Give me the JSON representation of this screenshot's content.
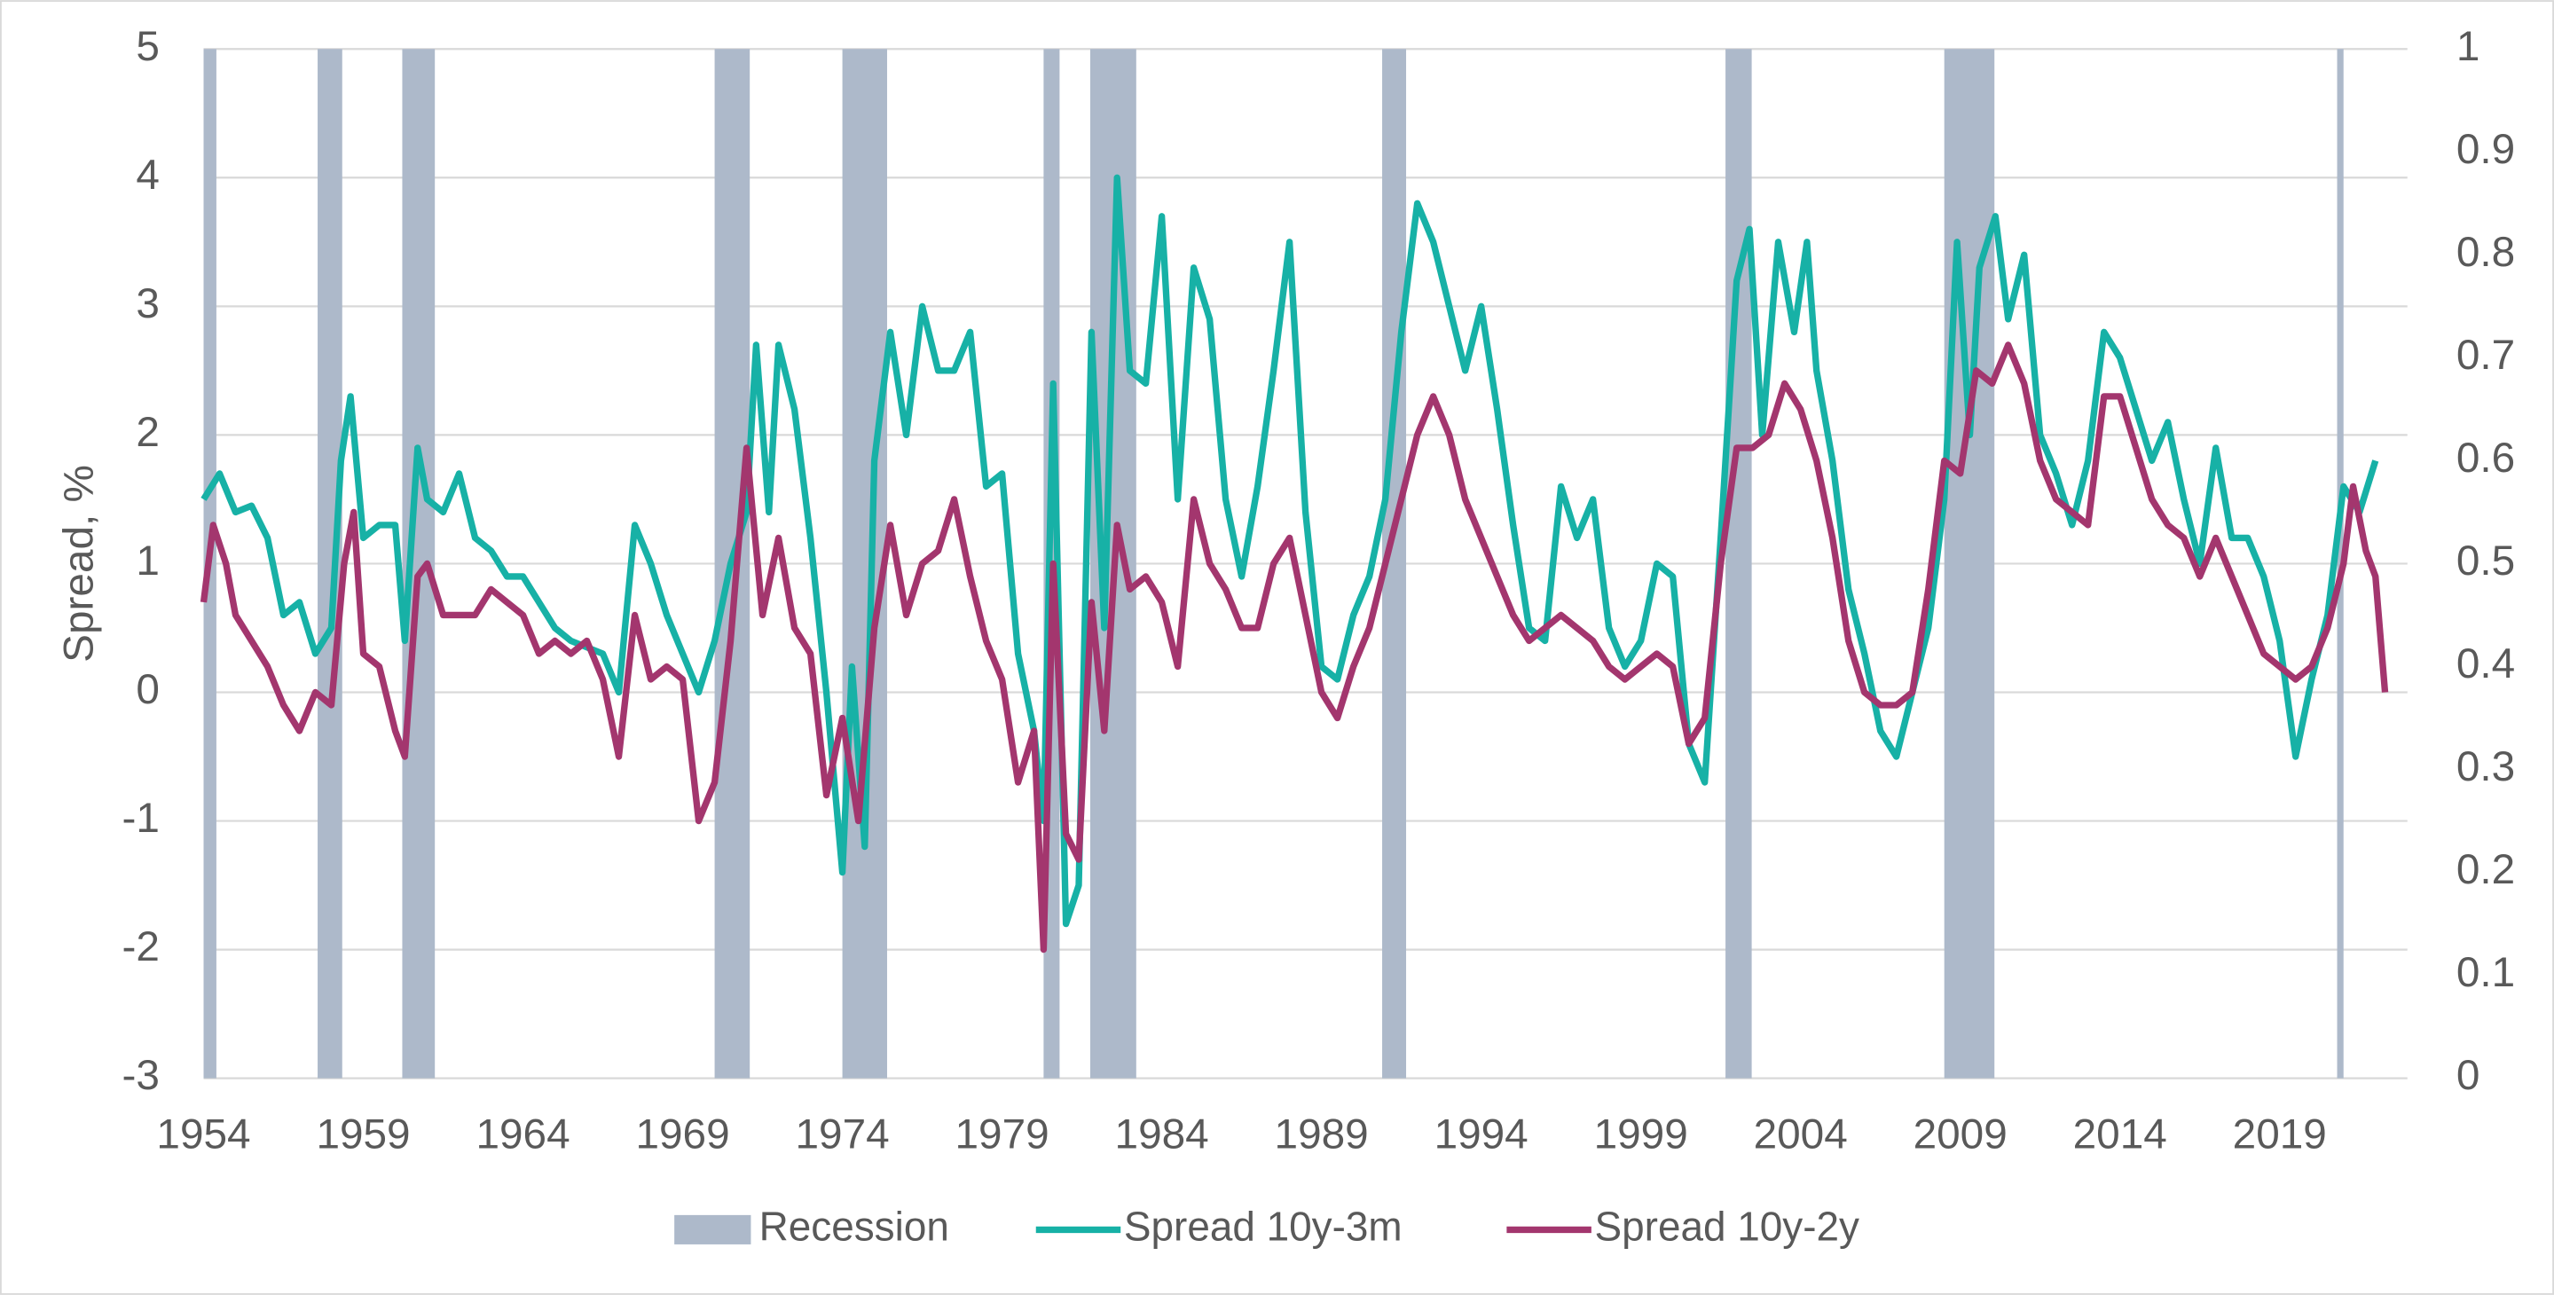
{
  "chart_data": {
    "type": "line",
    "ylabel": "Spread, %",
    "xlim": [
      1954,
      2023
    ],
    "xticks": [
      1954,
      1959,
      1964,
      1969,
      1974,
      1979,
      1984,
      1989,
      1994,
      1999,
      2004,
      2009,
      2014,
      2019
    ],
    "ylim": [
      -3,
      5
    ],
    "yticks": [
      -3,
      -2,
      -1,
      0,
      1,
      2,
      3,
      4,
      5
    ],
    "y2lim": [
      0,
      1
    ],
    "y2ticks": [
      0,
      0.1,
      0.2,
      0.3,
      0.4,
      0.5,
      0.6,
      0.7,
      0.8,
      0.9,
      1
    ],
    "grid": true,
    "legend": "bottom",
    "recession": {
      "name": "Recession",
      "color": "#adb9ca",
      "axis": "y2",
      "periods": [
        [
          1954,
          1954.4
        ],
        [
          1957.57,
          1958.34
        ],
        [
          1960.22,
          1961.24
        ],
        [
          1970.0,
          1971.1
        ],
        [
          1974.0,
          1975.4
        ],
        [
          1980.3,
          1980.8
        ],
        [
          1981.76,
          1983.2
        ],
        [
          1990.9,
          1991.65
        ],
        [
          2001.65,
          2002.47
        ],
        [
          2008.5,
          2010.07
        ],
        [
          2020.8,
          2021.0
        ]
      ],
      "values": [
        1,
        1,
        1,
        1,
        1,
        1,
        1,
        1,
        1,
        1,
        1
      ]
    },
    "series": [
      {
        "name": "Spread 10y-3m",
        "color": "#17b1a6",
        "x": [
          1954.0,
          1954.5,
          1955.0,
          1955.5,
          1956.0,
          1956.5,
          1957.0,
          1957.5,
          1958.0,
          1958.3,
          1958.6,
          1959.0,
          1959.5,
          1960.0,
          1960.3,
          1960.7,
          1961.0,
          1961.5,
          1962.0,
          1962.5,
          1963.0,
          1963.5,
          1964.0,
          1964.5,
          1965.0,
          1965.5,
          1966.0,
          1966.5,
          1967.0,
          1967.5,
          1968.0,
          1968.5,
          1969.0,
          1969.5,
          1970.0,
          1970.5,
          1971.0,
          1971.3,
          1971.7,
          1972.0,
          1972.5,
          1973.0,
          1973.5,
          1974.0,
          1974.3,
          1974.7,
          1975.0,
          1975.5,
          1976.0,
          1976.5,
          1977.0,
          1977.5,
          1978.0,
          1978.5,
          1979.0,
          1979.5,
          1980.0,
          1980.3,
          1980.6,
          1981.0,
          1981.4,
          1981.8,
          1982.2,
          1982.6,
          1983.0,
          1983.5,
          1984.0,
          1984.5,
          1985.0,
          1985.5,
          1986.0,
          1986.5,
          1987.0,
          1987.5,
          1988.0,
          1988.5,
          1989.0,
          1989.5,
          1990.0,
          1990.5,
          1991.0,
          1991.5,
          1992.0,
          1992.5,
          1993.0,
          1993.5,
          1994.0,
          1994.5,
          1995.0,
          1995.5,
          1996.0,
          1996.5,
          1997.0,
          1997.5,
          1998.0,
          1998.5,
          1999.0,
          1999.5,
          2000.0,
          2000.5,
          2001.0,
          2001.5,
          2002.0,
          2002.4,
          2002.8,
          2003.3,
          2003.8,
          2004.2,
          2004.5,
          2005.0,
          2005.5,
          2006.0,
          2006.5,
          2007.0,
          2007.5,
          2008.0,
          2008.5,
          2008.9,
          2009.3,
          2009.6,
          2010.1,
          2010.5,
          2011.0,
          2011.5,
          2012.0,
          2012.5,
          2013.0,
          2013.5,
          2014.0,
          2014.5,
          2015.0,
          2015.5,
          2016.0,
          2016.5,
          2017.0,
          2017.5,
          2018.0,
          2018.5,
          2019.0,
          2019.5,
          2020.0,
          2020.5,
          2021.0,
          2021.5,
          2022.0
        ],
        "values": [
          1.5,
          1.7,
          1.4,
          1.45,
          1.2,
          0.6,
          0.7,
          0.3,
          0.5,
          1.8,
          2.3,
          1.2,
          1.3,
          1.3,
          0.4,
          1.9,
          1.5,
          1.4,
          1.7,
          1.2,
          1.1,
          0.9,
          0.9,
          0.7,
          0.5,
          0.4,
          0.35,
          0.3,
          0.0,
          1.3,
          1.0,
          0.6,
          0.3,
          0.0,
          0.4,
          1.0,
          1.4,
          2.7,
          1.4,
          2.7,
          2.2,
          1.2,
          0.0,
          -1.4,
          0.2,
          -1.2,
          1.8,
          2.8,
          2.0,
          3.0,
          2.5,
          2.5,
          2.8,
          1.6,
          1.7,
          0.3,
          -0.3,
          -1.0,
          2.4,
          -1.8,
          -1.5,
          2.8,
          0.5,
          4.0,
          2.5,
          2.4,
          3.7,
          1.5,
          3.3,
          2.9,
          1.5,
          0.9,
          1.6,
          2.5,
          3.5,
          1.4,
          0.2,
          0.1,
          0.6,
          0.9,
          1.5,
          2.8,
          3.8,
          3.5,
          3.0,
          2.5,
          3.0,
          2.2,
          1.3,
          0.5,
          0.4,
          1.6,
          1.2,
          1.5,
          0.5,
          0.2,
          0.4,
          1.0,
          0.9,
          -0.4,
          -0.7,
          1.2,
          3.2,
          3.6,
          2.0,
          3.5,
          2.8,
          3.5,
          2.5,
          1.8,
          0.8,
          0.3,
          -0.3,
          -0.5,
          0.0,
          0.5,
          1.5,
          3.5,
          2.0,
          3.3,
          3.7,
          2.9,
          3.4,
          2.0,
          1.7,
          1.3,
          1.8,
          2.8,
          2.6,
          2.2,
          1.8,
          2.1,
          1.5,
          1.0,
          1.9,
          1.2,
          1.2,
          0.9,
          0.4,
          -0.5,
          0.1,
          0.6,
          1.6,
          1.4,
          1.8
        ]
      },
      {
        "name": "Spread 10y-2y",
        "color": "#a3366e",
        "x": [
          1954.0,
          1954.3,
          1954.7,
          1955.0,
          1955.5,
          1956.0,
          1956.5,
          1957.0,
          1957.5,
          1958.0,
          1958.4,
          1958.7,
          1959.0,
          1959.5,
          1960.0,
          1960.3,
          1960.7,
          1961.0,
          1961.5,
          1962.0,
          1962.5,
          1963.0,
          1963.5,
          1964.0,
          1964.5,
          1965.0,
          1965.5,
          1966.0,
          1966.5,
          1967.0,
          1967.5,
          1968.0,
          1968.5,
          1969.0,
          1969.5,
          1970.0,
          1970.5,
          1971.0,
          1971.5,
          1972.0,
          1972.5,
          1973.0,
          1973.5,
          1974.0,
          1974.5,
          1975.0,
          1975.5,
          1976.0,
          1976.5,
          1977.0,
          1977.5,
          1978.0,
          1978.5,
          1979.0,
          1979.5,
          1980.0,
          1980.3,
          1980.6,
          1981.0,
          1981.4,
          1981.8,
          1982.2,
          1982.6,
          1983.0,
          1983.5,
          1984.0,
          1984.5,
          1985.0,
          1985.5,
          1986.0,
          1986.5,
          1987.0,
          1987.5,
          1988.0,
          1988.5,
          1989.0,
          1989.5,
          1990.0,
          1990.5,
          1991.0,
          1991.5,
          1992.0,
          1992.5,
          1993.0,
          1993.5,
          1994.0,
          1994.5,
          1995.0,
          1995.5,
          1996.0,
          1996.5,
          1997.0,
          1997.5,
          1998.0,
          1998.5,
          1999.0,
          1999.5,
          2000.0,
          2000.5,
          2001.0,
          2001.5,
          2002.0,
          2002.5,
          2003.0,
          2003.5,
          2004.0,
          2004.5,
          2005.0,
          2005.5,
          2006.0,
          2006.5,
          2007.0,
          2007.5,
          2008.0,
          2008.5,
          2009.0,
          2009.5,
          2010.0,
          2010.5,
          2011.0,
          2011.5,
          2012.0,
          2012.5,
          2013.0,
          2013.5,
          2014.0,
          2014.5,
          2015.0,
          2015.5,
          2016.0,
          2016.5,
          2017.0,
          2017.5,
          2018.0,
          2018.5,
          2019.0,
          2019.5,
          2020.0,
          2020.5,
          2021.0,
          2021.3,
          2021.7,
          2022.0,
          2022.3
        ],
        "values": [
          0.7,
          1.3,
          1.0,
          0.6,
          0.4,
          0.2,
          -0.1,
          -0.3,
          0.0,
          -0.1,
          1.0,
          1.4,
          0.3,
          0.2,
          -0.3,
          -0.5,
          0.9,
          1.0,
          0.6,
          0.6,
          0.6,
          0.8,
          0.7,
          0.6,
          0.3,
          0.4,
          0.3,
          0.4,
          0.1,
          -0.5,
          0.6,
          0.1,
          0.2,
          0.1,
          -1.0,
          -0.7,
          0.4,
          1.9,
          0.6,
          1.2,
          0.5,
          0.3,
          -0.8,
          -0.2,
          -1.0,
          0.5,
          1.3,
          0.6,
          1.0,
          1.1,
          1.5,
          0.9,
          0.4,
          0.1,
          -0.7,
          -0.3,
          -2.0,
          1.0,
          -1.1,
          -1.3,
          0.7,
          -0.3,
          1.3,
          0.8,
          0.9,
          0.7,
          0.2,
          1.5,
          1.0,
          0.8,
          0.5,
          0.5,
          1.0,
          1.2,
          0.6,
          0.0,
          -0.2,
          0.2,
          0.5,
          1.0,
          1.5,
          2.0,
          2.3,
          2.0,
          1.5,
          1.2,
          0.9,
          0.6,
          0.4,
          0.5,
          0.6,
          0.5,
          0.4,
          0.2,
          0.1,
          0.2,
          0.3,
          0.2,
          -0.4,
          -0.2,
          1.0,
          1.9,
          1.9,
          2.0,
          2.4,
          2.2,
          1.8,
          1.2,
          0.4,
          0.0,
          -0.1,
          -0.1,
          0.0,
          0.8,
          1.8,
          1.7,
          2.5,
          2.4,
          2.7,
          2.4,
          1.8,
          1.5,
          1.4,
          1.3,
          2.3,
          2.3,
          1.9,
          1.5,
          1.3,
          1.2,
          0.9,
          1.2,
          0.9,
          0.6,
          0.3,
          0.2,
          0.1,
          0.2,
          0.5,
          1.0,
          1.6,
          1.1,
          0.9,
          0.0
        ]
      }
    ]
  }
}
